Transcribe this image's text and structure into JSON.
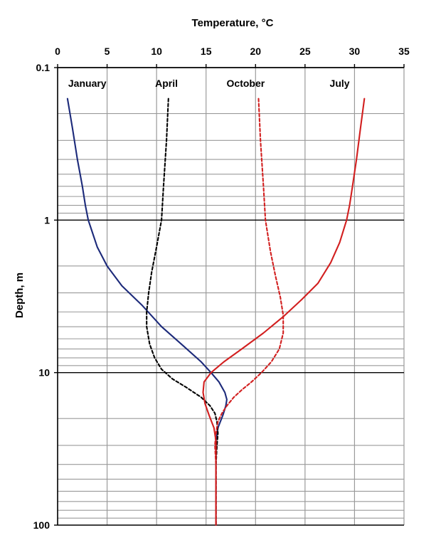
{
  "chart_data": {
    "type": "line",
    "title": "",
    "xlabel": "Temperature, °C",
    "ylabel": "Depth, m",
    "x_axis_position": "top",
    "xlim": [
      0,
      35
    ],
    "x_ticks": [
      0,
      5,
      10,
      15,
      20,
      25,
      30,
      35
    ],
    "x_tick_labels": [
      "0",
      "5",
      "10",
      "15",
      "20",
      "25",
      "30",
      "35"
    ],
    "y_scale": "log",
    "y_inverted": true,
    "ylim": [
      0.1,
      100
    ],
    "y_ticks": [
      0.1,
      1,
      10,
      100
    ],
    "y_tick_labels": [
      "0.1",
      "1",
      "10",
      "100"
    ],
    "grid": true,
    "legend": "none",
    "series": [
      {
        "name": "January",
        "color": "#1c2a7a",
        "dash": "solid",
        "points": [
          [
            1.0,
            0.16
          ],
          [
            1.5,
            0.25
          ],
          [
            2.0,
            0.4
          ],
          [
            2.5,
            0.6
          ],
          [
            2.8,
            0.8
          ],
          [
            3.1,
            1.0
          ],
          [
            4.0,
            1.5
          ],
          [
            5.0,
            2.0
          ],
          [
            6.5,
            2.7
          ],
          [
            8.5,
            3.6
          ],
          [
            10.5,
            5.0
          ],
          [
            12.5,
            6.5
          ],
          [
            14.5,
            8.5
          ],
          [
            15.5,
            10.0
          ],
          [
            16.3,
            11.5
          ],
          [
            16.9,
            13.5
          ],
          [
            17.1,
            15.0
          ],
          [
            17.0,
            16.5
          ],
          [
            16.7,
            19.0
          ],
          [
            16.2,
            23.0
          ],
          [
            16.0,
            28.0
          ],
          [
            16.0,
            35.0
          ],
          [
            16.0,
            50.0
          ],
          [
            16.0,
            100.0
          ]
        ]
      },
      {
        "name": "April",
        "color": "#000000",
        "dash": "dashed",
        "points": [
          [
            11.2,
            0.16
          ],
          [
            11.0,
            0.3
          ],
          [
            10.7,
            0.6
          ],
          [
            10.5,
            1.0
          ],
          [
            10.0,
            1.5
          ],
          [
            9.5,
            2.2
          ],
          [
            9.2,
            3.0
          ],
          [
            9.0,
            4.0
          ],
          [
            9.0,
            5.0
          ],
          [
            9.3,
            6.5
          ],
          [
            9.8,
            8.0
          ],
          [
            10.5,
            9.5
          ],
          [
            11.6,
            11.0
          ],
          [
            13.0,
            12.5
          ],
          [
            14.5,
            14.5
          ],
          [
            15.4,
            16.5
          ],
          [
            15.9,
            18.5
          ],
          [
            16.1,
            21.0
          ],
          [
            16.2,
            25.0
          ],
          [
            16.1,
            30.0
          ],
          [
            16.0,
            40.0
          ],
          [
            16.0,
            100.0
          ]
        ]
      },
      {
        "name": "October",
        "color": "#d21f1f",
        "dash": "dashed",
        "points": [
          [
            20.3,
            0.16
          ],
          [
            20.5,
            0.3
          ],
          [
            20.8,
            0.6
          ],
          [
            21.0,
            1.0
          ],
          [
            21.5,
            1.6
          ],
          [
            22.0,
            2.3
          ],
          [
            22.5,
            3.2
          ],
          [
            22.8,
            4.2
          ],
          [
            22.8,
            5.5
          ],
          [
            22.4,
            7.0
          ],
          [
            21.6,
            8.5
          ],
          [
            20.6,
            10.0
          ],
          [
            19.6,
            11.5
          ],
          [
            18.6,
            13.0
          ],
          [
            17.8,
            14.5
          ],
          [
            17.1,
            16.5
          ],
          [
            16.6,
            18.5
          ],
          [
            16.2,
            21.0
          ],
          [
            16.0,
            25.0
          ],
          [
            15.9,
            30.0
          ],
          [
            16.0,
            40.0
          ],
          [
            16.0,
            100.0
          ]
        ]
      },
      {
        "name": "July",
        "color": "#d21f1f",
        "dash": "solid",
        "points": [
          [
            31.0,
            0.16
          ],
          [
            30.6,
            0.25
          ],
          [
            30.2,
            0.4
          ],
          [
            29.8,
            0.6
          ],
          [
            29.5,
            0.8
          ],
          [
            29.2,
            1.0
          ],
          [
            28.5,
            1.4
          ],
          [
            27.6,
            1.9
          ],
          [
            26.3,
            2.6
          ],
          [
            24.7,
            3.3
          ],
          [
            22.8,
            4.3
          ],
          [
            20.8,
            5.5
          ],
          [
            18.6,
            7.0
          ],
          [
            16.8,
            8.5
          ],
          [
            15.5,
            10.0
          ],
          [
            14.8,
            11.5
          ],
          [
            14.7,
            13.5
          ],
          [
            14.9,
            16.0
          ],
          [
            15.3,
            19.0
          ],
          [
            15.8,
            23.0
          ],
          [
            16.0,
            28.0
          ],
          [
            16.0,
            40.0
          ],
          [
            16.0,
            100.0
          ]
        ]
      }
    ],
    "series_labels": [
      {
        "text": "January",
        "x": 3.0
      },
      {
        "text": "April",
        "x": 11.0
      },
      {
        "text": "October",
        "x": 19.0
      },
      {
        "text": "July",
        "x": 28.5
      }
    ],
    "colors": {
      "grid": "#9a9a9a",
      "major_grid": "#000000",
      "axis": "#000000"
    }
  }
}
